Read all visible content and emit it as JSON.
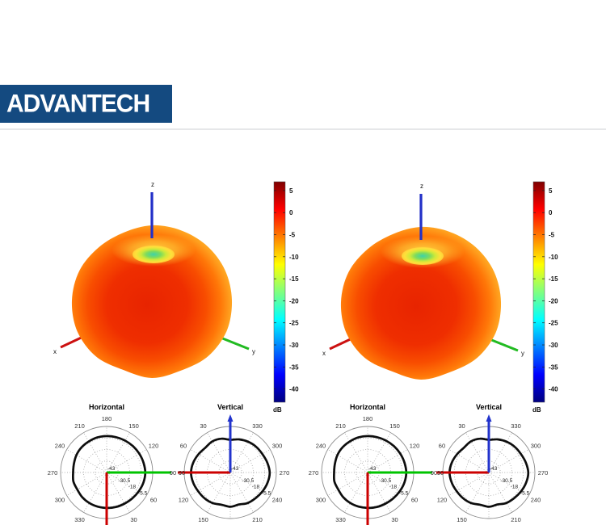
{
  "header": {
    "logo_text": "ADVANTECH"
  },
  "colors": {
    "logo_bg": "#144a80",
    "divider": "#e6e7e9",
    "axis_x": "#cc1111",
    "axis_y": "#22bb22",
    "axis_z": "#2230c8",
    "pattern_line": "#0d0d0d",
    "polar_green": "#00c400",
    "polar_red": "#cc0000",
    "polar_blue": "#2233cc"
  },
  "colorbar": {
    "unit": "dB",
    "ticks": [
      5,
      0,
      -5,
      -10,
      -15,
      -20,
      -25,
      -30,
      -35,
      -40
    ],
    "max": 7,
    "min": -43
  },
  "chart_data": [
    {
      "id": "3d-pattern-left",
      "type": "surface3d",
      "description": "3D antenna radiation gain pattern, apple-shaped omnidirectional lobe with null toward +z",
      "colormap": "jet",
      "axis_labels": [
        "x",
        "y",
        "z"
      ],
      "colorbar_unit": "dB",
      "colorbar_ticks": [
        5,
        0,
        -5,
        -10,
        -15,
        -20,
        -25,
        -30,
        -35,
        -40
      ],
      "colorbar_range": [
        -43,
        7
      ]
    },
    {
      "id": "3d-pattern-right",
      "type": "surface3d",
      "description": "3D antenna radiation gain pattern, apple-shaped omnidirectional lobe with null toward +z",
      "colormap": "jet",
      "axis_labels": [
        "x",
        "y",
        "z"
      ],
      "colorbar_unit": "dB",
      "colorbar_ticks": [
        5,
        0,
        -5,
        -10,
        -15,
        -20,
        -25,
        -30,
        -35,
        -40
      ],
      "colorbar_range": [
        -43,
        7
      ]
    },
    {
      "id": "polar-horizontal-left",
      "type": "line-polar",
      "kind": "horizontal",
      "title": "Horizontal",
      "orientation": "180 at top, 90 at right, 0 at bottom",
      "angle_labels": [
        180,
        150,
        120,
        90,
        60,
        30,
        330,
        300,
        270,
        240,
        210
      ],
      "radial_ticks": [
        "-43",
        "-30.5",
        "-18",
        "-5.5"
      ],
      "r_range": [
        -43,
        7
      ],
      "angle_step_deg": 15,
      "values_db": [
        -4.5,
        -4.2,
        -4.0,
        -3.4,
        -2.6,
        -1.6,
        -1.1,
        -1.6,
        -2.1,
        -2.6,
        -3.0,
        -3.3,
        -3.4,
        -3.6,
        -4.1,
        -4.4,
        -5.1,
        -6.2,
        -6.6,
        -5.6,
        -6.1,
        -5.3,
        -4.9,
        -4.7
      ]
    },
    {
      "id": "polar-vertical-left",
      "type": "line-polar",
      "kind": "vertical",
      "title": "Vertical",
      "orientation": "0 at top, 90 at left, counterclockwise",
      "angle_labels": [
        30,
        330,
        300,
        270,
        240,
        210,
        150,
        120,
        90,
        60
      ],
      "radial_ticks": [
        "-43",
        "-30.5",
        "-18",
        "-5.5"
      ],
      "r_range": [
        -43,
        7
      ],
      "angle_step_deg": 15,
      "values_db": [
        -7.5,
        -5.0,
        -4.0,
        -4.8,
        -3.2,
        -1.4,
        -0.4,
        -1.2,
        -2.6,
        -3.4,
        -4.6,
        -6.8,
        -5.8,
        -7.0,
        -4.8,
        -3.8,
        -2.4,
        -1.0,
        -0.2,
        -1.4,
        -2.8,
        -3.4,
        -4.4,
        -5.8
      ]
    },
    {
      "id": "polar-horizontal-right",
      "type": "line-polar",
      "kind": "horizontal",
      "title": "Horizontal",
      "orientation": "180 at top, 90 at right, 0 at bottom",
      "angle_labels": [
        180,
        150,
        120,
        90,
        60,
        30,
        330,
        300,
        270,
        240,
        210
      ],
      "radial_ticks": [
        "-43",
        "-30.5",
        "-18",
        "-5.5"
      ],
      "r_range": [
        -43,
        7
      ],
      "angle_step_deg": 15,
      "values_db": [
        -4.5,
        -4.2,
        -4.0,
        -3.4,
        -2.6,
        -1.6,
        -1.1,
        -1.6,
        -2.1,
        -2.6,
        -3.0,
        -3.3,
        -3.4,
        -3.6,
        -4.1,
        -4.4,
        -5.1,
        -6.2,
        -6.6,
        -5.6,
        -6.1,
        -5.3,
        -4.9,
        -4.7
      ]
    },
    {
      "id": "polar-vertical-right",
      "type": "line-polar",
      "kind": "vertical",
      "title": "Vertical",
      "orientation": "0 at top, 90 at left, counterclockwise",
      "angle_labels": [
        30,
        330,
        300,
        270,
        240,
        210,
        150,
        120,
        90,
        60
      ],
      "radial_ticks": [
        "-43",
        "-30.5",
        "-18",
        "-5.5"
      ],
      "r_range": [
        -43,
        7
      ],
      "angle_step_deg": 15,
      "values_db": [
        -7.5,
        -5.0,
        -4.0,
        -4.8,
        -3.2,
        -1.4,
        -0.4,
        -1.2,
        -2.6,
        -3.4,
        -4.6,
        -6.8,
        -5.8,
        -7.0,
        -4.8,
        -3.8,
        -2.4,
        -1.0,
        -0.2,
        -1.4,
        -2.8,
        -3.4,
        -4.4,
        -5.8
      ]
    }
  ]
}
